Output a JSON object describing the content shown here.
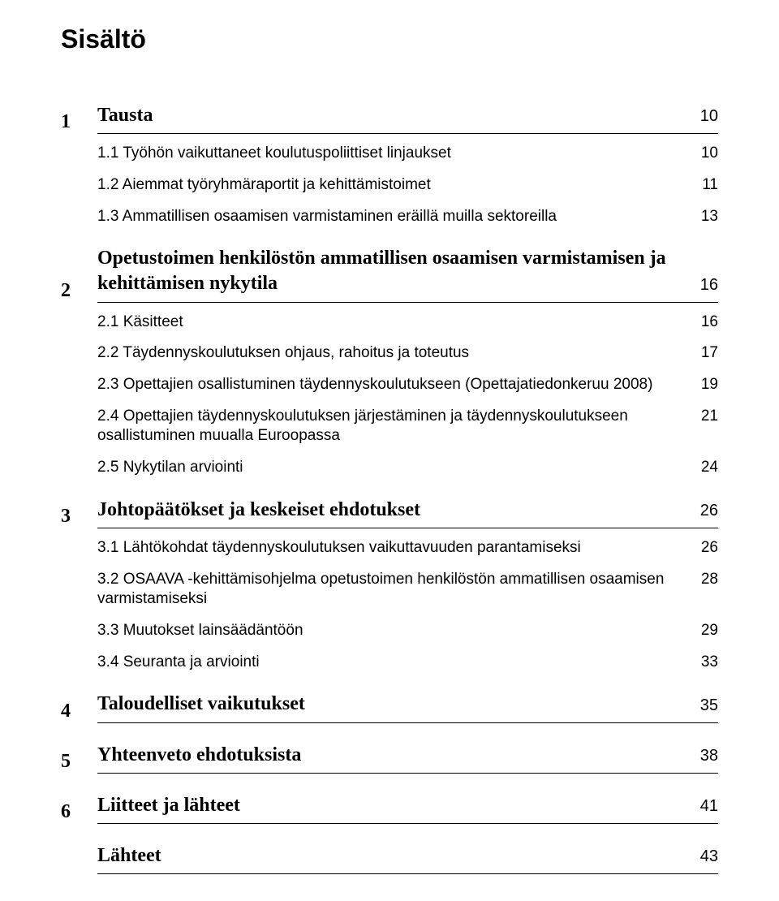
{
  "heading": "Sisältö",
  "toc": [
    {
      "num": "1",
      "label": "Tausta",
      "page": "10",
      "sections": [
        {
          "label": "1.1 Työhön vaikuttaneet koulutuspoliittiset linjaukset",
          "page": "10"
        },
        {
          "label": "1.2 Aiemmat työryhmäraportit ja kehittämistoimet",
          "page": "11"
        },
        {
          "label": "1.3 Ammatillisen osaamisen varmistaminen eräillä muilla sektoreilla",
          "page": "13"
        }
      ]
    },
    {
      "num": "2",
      "label": "Opetustoimen henkilöstön ammatillisen osaamisen varmistamisen ja kehittämisen nykytila",
      "page": "16",
      "sections": [
        {
          "label": "2.1 Käsitteet",
          "page": "16"
        },
        {
          "label": "2.2 Täydennyskoulutuksen ohjaus, rahoitus ja toteutus",
          "page": "17"
        },
        {
          "label": "2.3 Opettajien osallistuminen täydennyskoulutukseen (Opettajatiedonkeruu 2008)",
          "page": "19"
        },
        {
          "label": "2.4 Opettajien täydennyskoulutuksen järjestäminen ja täydennyskoulutukseen osallistuminen muualla Euroopassa",
          "page": "21"
        },
        {
          "label": "2.5 Nykytilan arviointi",
          "page": "24"
        }
      ]
    },
    {
      "num": "3",
      "label": "Johtopäätökset ja keskeiset ehdotukset",
      "page": "26",
      "sections": [
        {
          "label": "3.1 Lähtökohdat täydennyskoulutuksen vaikuttavuuden parantamiseksi",
          "page": "26"
        },
        {
          "label": "3.2 OSAAVA -kehittämisohjelma opetustoimen henkilöstön ammatillisen osaamisen varmistamiseksi",
          "page": "28"
        },
        {
          "label": "3.3 Muutokset lainsäädäntöön",
          "page": "29"
        },
        {
          "label": "3.4 Seuranta ja arviointi",
          "page": "33"
        }
      ]
    },
    {
      "num": "4",
      "label": "Taloudelliset vaikutukset",
      "page": "35",
      "sections": []
    },
    {
      "num": "5",
      "label": "Yhteenveto ehdotuksista",
      "page": "38",
      "sections": []
    },
    {
      "num": "6",
      "label": "Liitteet ja lähteet",
      "page": "41",
      "sections": []
    },
    {
      "num": "",
      "label": "Lähteet",
      "page": "43",
      "sections": []
    }
  ]
}
